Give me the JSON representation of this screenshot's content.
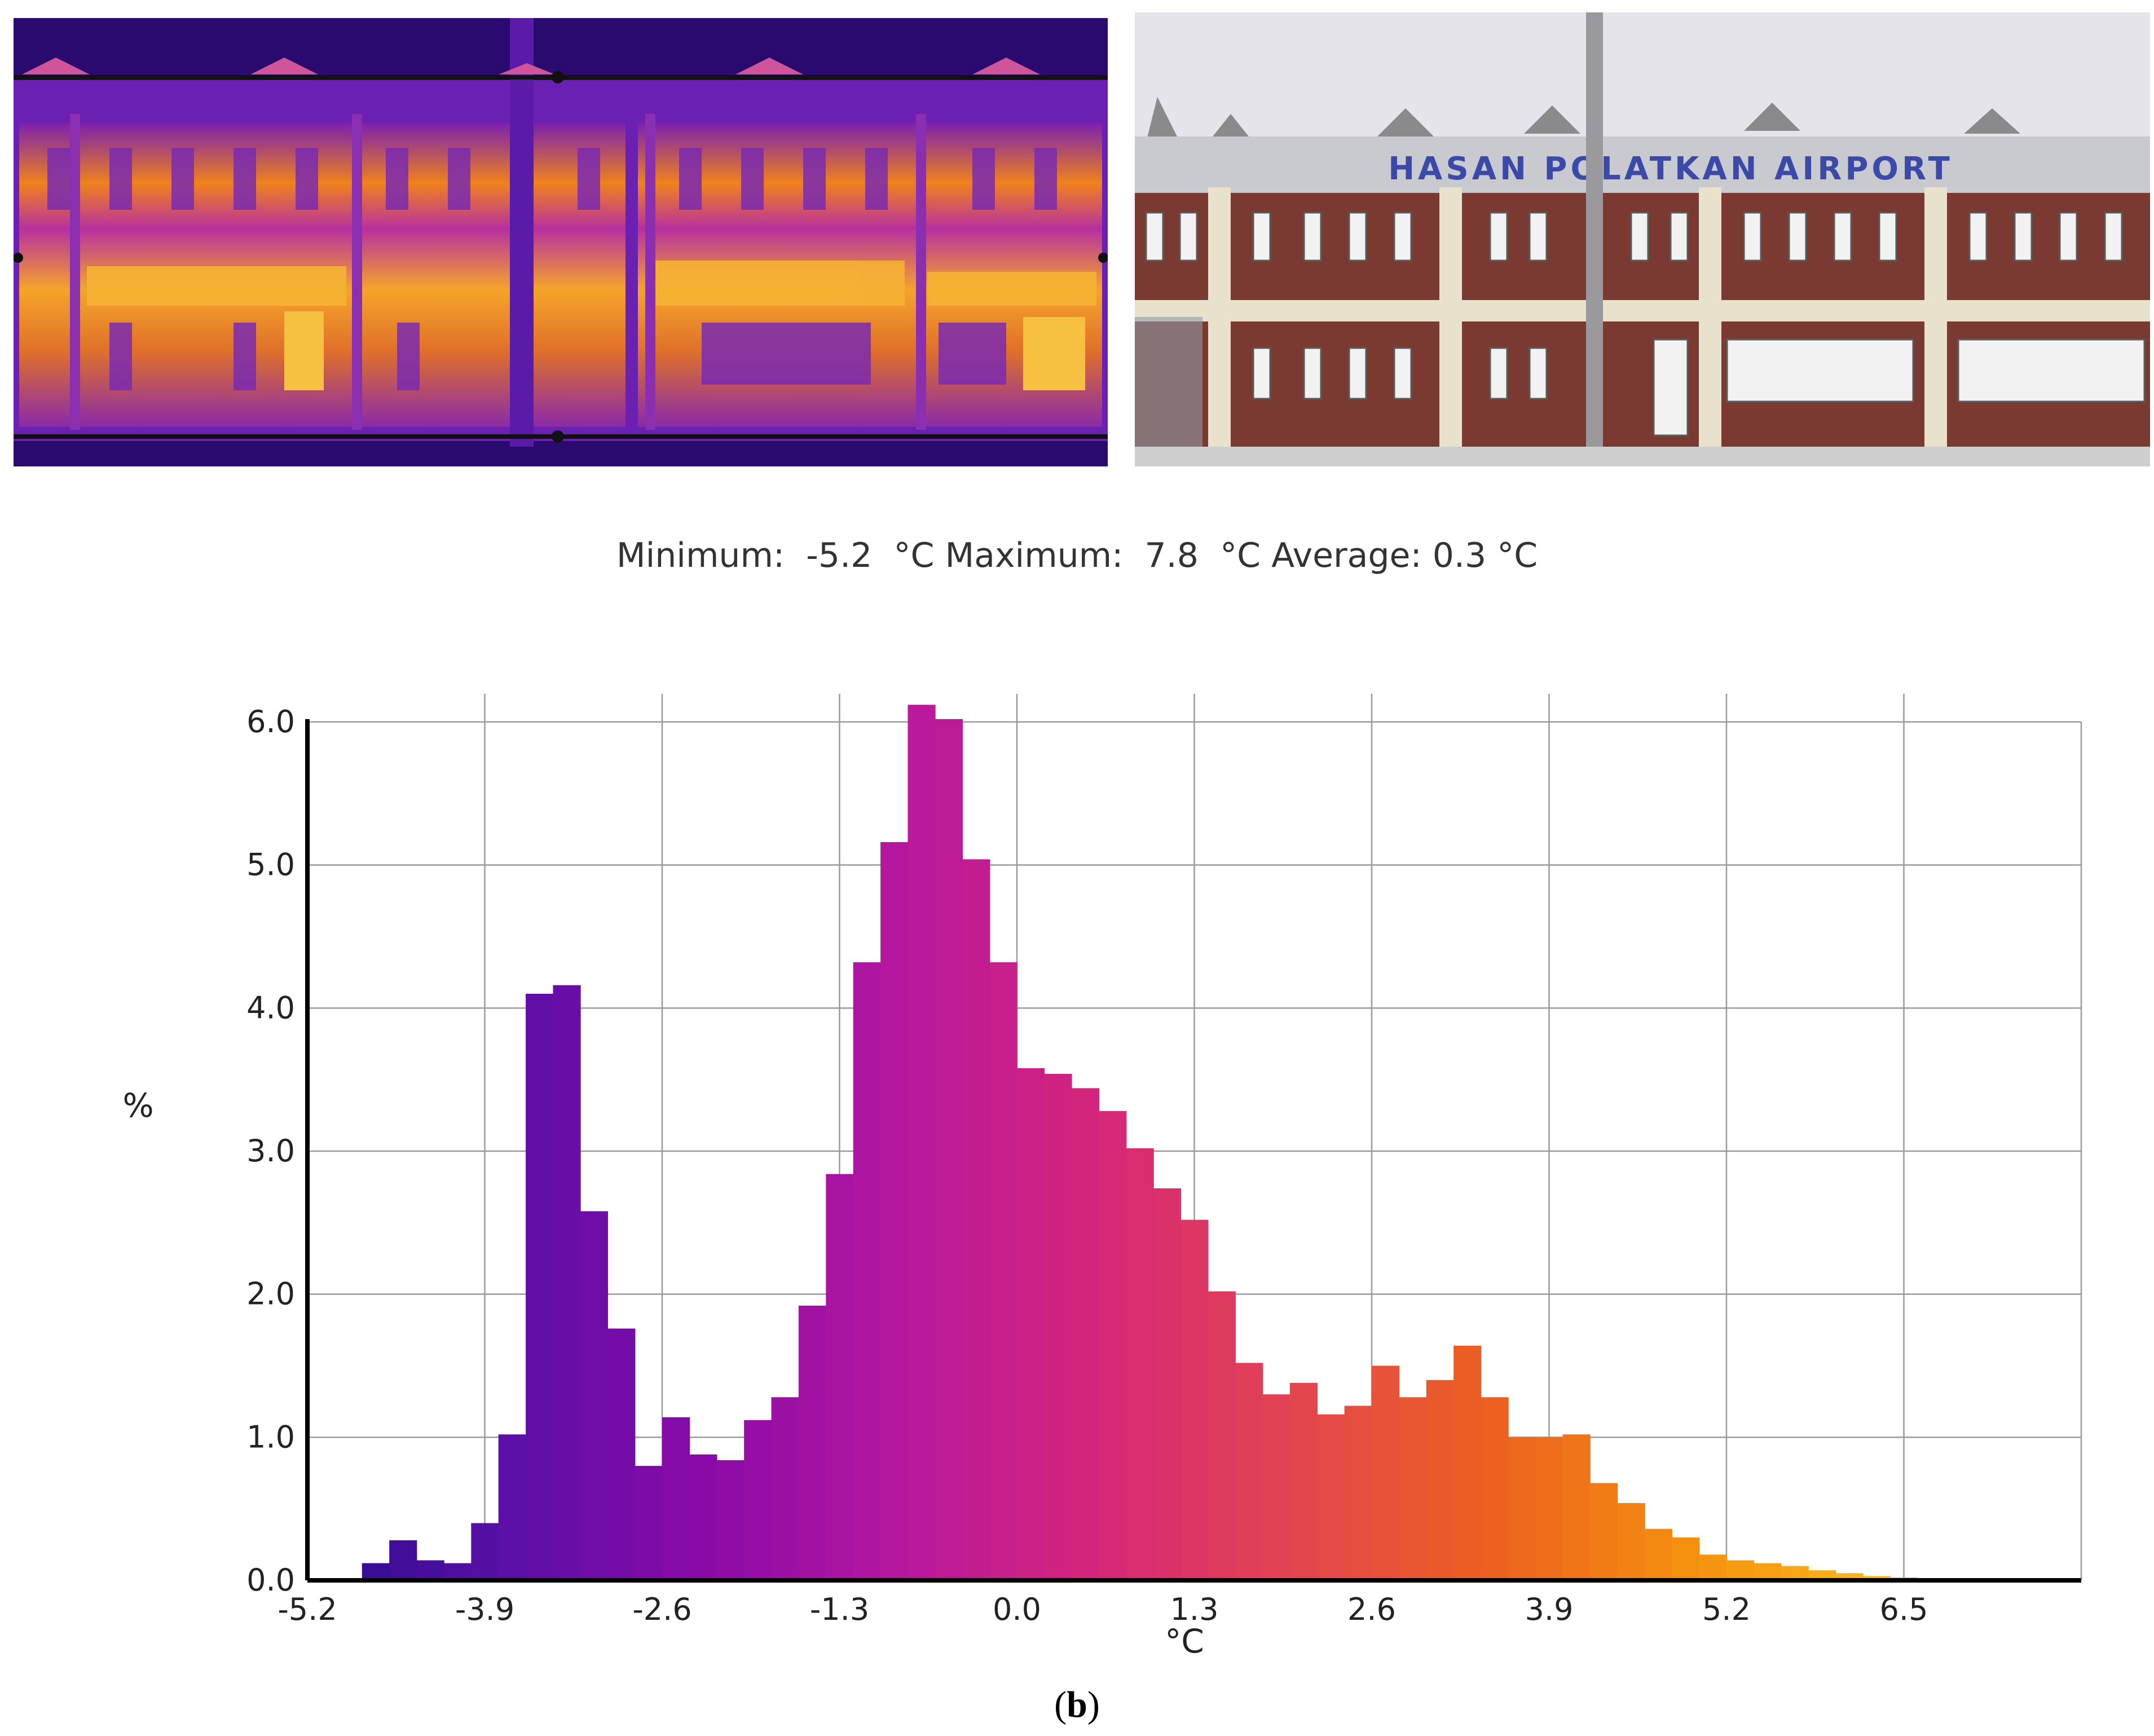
{
  "thermal_image": {
    "colors": {
      "frame": "#2a0a6e",
      "cold": "#5a1ba8",
      "mid": "#c0269a",
      "warm": "#f08a1c",
      "hot": "#ffd24a"
    }
  },
  "photo": {
    "sign_text": "HASAN POLATKAN AIRPORT",
    "colors": {
      "sky": "#e4e4ea",
      "brick": "#7a3a32",
      "trim": "#e8e2cc",
      "ground": "#cfcfcf",
      "sign": "#3b4aa8"
    }
  },
  "stats": {
    "min_label": "Minimum:",
    "min_value": "-5.2",
    "min_unit": "°C",
    "max_label": "Maximum:",
    "max_value": "7.8",
    "max_unit": "°C",
    "avg_label": "Average:",
    "avg_value": "0.3",
    "avg_unit": "°C"
  },
  "chart_data": {
    "type": "bar",
    "xlabel": "°C",
    "ylabel": "%",
    "xlim": [
      -5.2,
      7.8
    ],
    "ylim": [
      0,
      6.0
    ],
    "x_ticks": [
      "-5.2",
      "-3.9",
      "-2.6",
      "-1.3",
      "0.0",
      "1.3",
      "2.6",
      "3.9",
      "5.2",
      "6.5"
    ],
    "y_ticks": [
      "0.0",
      "1.0",
      "2.0",
      "3.0",
      "4.0",
      "5.0",
      "6.0"
    ],
    "grid": true,
    "bin_width": 0.2,
    "bin_start": -5.2,
    "values": [
      0.0,
      0.0,
      0.12,
      0.28,
      0.14,
      0.12,
      0.4,
      1.02,
      4.1,
      4.16,
      2.58,
      1.76,
      0.8,
      1.14,
      0.88,
      0.84,
      1.12,
      1.28,
      1.92,
      2.84,
      4.32,
      5.16,
      6.12,
      6.02,
      5.04,
      4.32,
      3.58,
      3.54,
      3.44,
      3.28,
      3.02,
      2.74,
      2.52,
      2.02,
      1.52,
      1.3,
      1.38,
      1.16,
      1.22,
      1.5,
      1.28,
      1.4,
      1.64,
      1.28,
      1.0,
      1.0,
      1.02,
      0.68,
      0.54,
      0.36,
      0.3,
      0.18,
      0.14,
      0.12,
      0.1,
      0.07,
      0.05,
      0.03,
      0.02,
      0.01,
      0.0,
      0.0,
      0.0,
      0.0,
      0.0
    ],
    "colors": [
      "#2b0b8c",
      "#5a0fa6",
      "#8a0aa8",
      "#b5179e",
      "#d6267a",
      "#e3454f",
      "#ec6020",
      "#f5900e",
      "#fbb81c",
      "#fde035"
    ]
  },
  "panel_label": "b"
}
